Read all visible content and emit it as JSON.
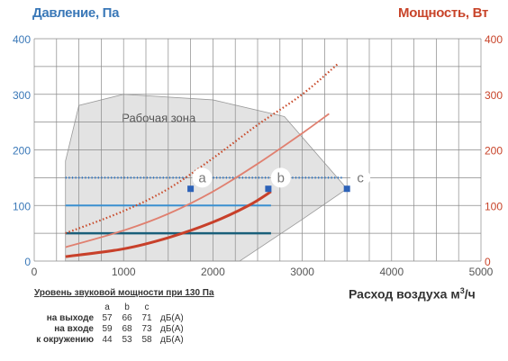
{
  "chart_data": {
    "type": "line",
    "left_axis_title": "Давление, Па",
    "right_axis_title": "Мощность, Вт",
    "xlabel": "Расход воздуха м3/ч",
    "xlabel_main": "Расход воздуха м",
    "xlabel_sup": "3",
    "xlabel_tail": "/ч",
    "xlim": [
      0,
      5000
    ],
    "ylim": [
      0,
      400
    ],
    "x_ticks": [
      "0",
      "1000",
      "2000",
      "3000",
      "4000",
      "5000"
    ],
    "y_ticks_left": [
      "0",
      "100",
      "200",
      "300",
      "400"
    ],
    "y_ticks_right": [
      "0",
      "100",
      "200",
      "300",
      "400"
    ],
    "grid": true,
    "zone_label": "Рабочая зона",
    "working_zone": [
      [
        350,
        50
      ],
      [
        350,
        180
      ],
      [
        500,
        280
      ],
      [
        1000,
        300
      ],
      [
        2000,
        290
      ],
      [
        2800,
        260
      ],
      [
        3500,
        130
      ],
      [
        3000,
        75
      ],
      [
        2300,
        0
      ],
      [
        350,
        0
      ]
    ],
    "pressure_series": [
      {
        "name": "a",
        "value": 150,
        "x_start": 350,
        "x_end": 1700
      },
      {
        "name": "b",
        "value": 150,
        "x_start": 2000,
        "x_end": 2650
      },
      {
        "name": "c",
        "value": 150,
        "x_start": 2850,
        "x_end": 3450
      },
      {
        "value": 100,
        "x_start": 350,
        "x_end": 2650
      },
      {
        "value": 50,
        "x_start": 350,
        "x_end": 2650
      }
    ],
    "power_series": [
      {
        "style": "dotted",
        "points": [
          [
            350,
            50
          ],
          [
            1000,
            90
          ],
          [
            1500,
            130
          ],
          [
            2000,
            185
          ],
          [
            2500,
            245
          ],
          [
            3000,
            300
          ],
          [
            3400,
            355
          ]
        ]
      },
      {
        "style": "thin",
        "points": [
          [
            350,
            25
          ],
          [
            1000,
            55
          ],
          [
            1500,
            85
          ],
          [
            2000,
            125
          ],
          [
            2500,
            175
          ],
          [
            3000,
            230
          ],
          [
            3300,
            265
          ]
        ]
      },
      {
        "style": "thick",
        "points": [
          [
            350,
            8
          ],
          [
            1000,
            22
          ],
          [
            1500,
            42
          ],
          [
            2000,
            70
          ],
          [
            2400,
            100
          ],
          [
            2650,
            125
          ]
        ]
      }
    ],
    "markers": [
      {
        "label": "a",
        "x": 1750,
        "y": 130
      },
      {
        "label": "b",
        "x": 2620,
        "y": 130
      },
      {
        "label": "c",
        "x": 3500,
        "y": 130
      }
    ],
    "colors": {
      "left_axis": "#3a78b8",
      "right_axis": "#c8442a",
      "grid": "#8a8a8a",
      "zone_fill": "#e3e3e3",
      "pressure_a": "#2b74c4",
      "pressure_100": "#3a8fd0",
      "pressure_50": "#1a5f7a",
      "power_dotted": "#c84a2a",
      "power_thin": "#e08070",
      "power_thick": "#c8402a",
      "marker": "#2d62b8"
    }
  },
  "noise": {
    "title": "Уровень звуковой мощности при 130 Па",
    "headers": [
      "a",
      "b",
      "c"
    ],
    "rows": [
      {
        "label": "на выходе",
        "values": [
          "57",
          "66",
          "71"
        ],
        "unit": "дБ(А)"
      },
      {
        "label": "на входе",
        "values": [
          "59",
          "68",
          "73"
        ],
        "unit": "дБ(А)"
      },
      {
        "label": "к окружению",
        "values": [
          "44",
          "53",
          "58"
        ],
        "unit": "дБ(А)"
      }
    ]
  }
}
